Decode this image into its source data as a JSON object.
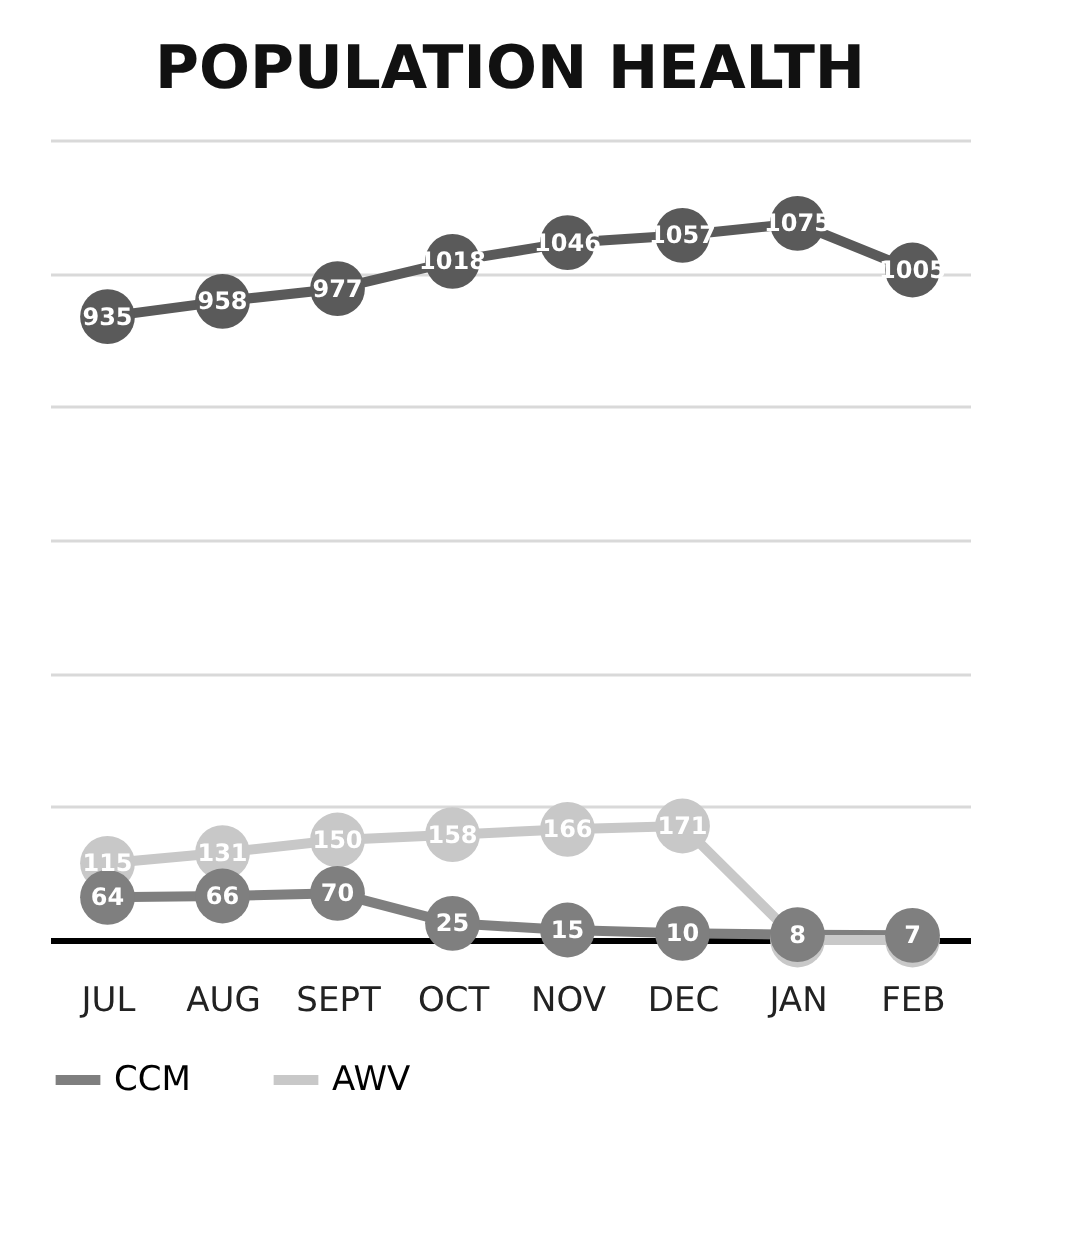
{
  "chart_data": {
    "type": "line",
    "title": "POPULATION HEALTH",
    "categories": [
      "JUL",
      "AUG",
      "SEPT",
      "OCT",
      "NOV",
      "DEC",
      "JAN",
      "FEB"
    ],
    "series": [
      {
        "name": "CCM",
        "color": "#7f7f7f",
        "values": [
          64,
          66,
          70,
          25,
          15,
          10,
          8,
          7
        ],
        "value_labels": [
          "64",
          "66",
          "70",
          "25",
          "15",
          "10",
          "8",
          "7"
        ]
      },
      {
        "name": "AWV",
        "color": "#c8c8c8",
        "values": [
          115,
          131,
          150,
          158,
          166,
          171,
          0,
          0
        ],
        "value_labels": [
          "115",
          "131",
          "150",
          "158",
          "166",
          "171",
          null,
          null
        ]
      },
      {
        "color": "#5a5a5a",
        "values": [
          935,
          958,
          977,
          1018,
          1046,
          1057,
          1075,
          1005
        ],
        "value_labels": [
          "935",
          "958",
          "977",
          "1018",
          "1046",
          "1057",
          "1075",
          "1005"
        ]
      }
    ],
    "ylim": [
      0,
      1200
    ],
    "yticks": [
      {
        "value": 0,
        "label": null
      },
      {
        "value": 200,
        "label": null
      },
      {
        "value": 400,
        "label": null
      },
      {
        "value": 600,
        "label": null
      },
      {
        "value": 800,
        "label": null
      },
      {
        "value": 1000,
        "label": null
      },
      {
        "value": 1200,
        "label": null
      }
    ],
    "grid": "y",
    "tick_labels": "x",
    "legend": "bottom",
    "marker": "circle",
    "line_style": "solid"
  }
}
